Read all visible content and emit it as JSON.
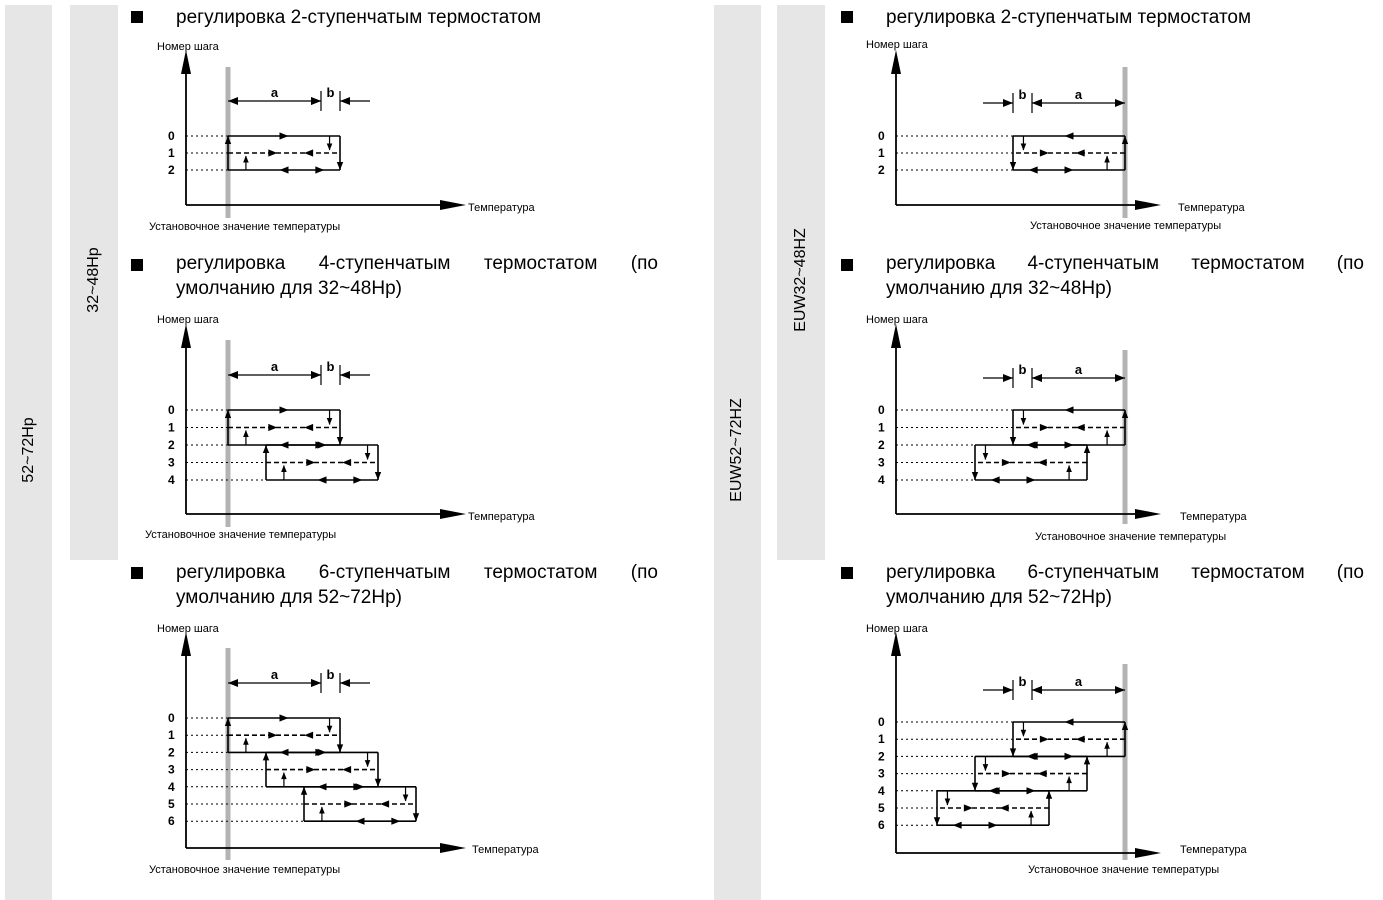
{
  "left_column": {
    "outer_label": "52~72Hp",
    "inner_label": "32~48Hp"
  },
  "right_column": {
    "outer_label": "EUW52~72HZ",
    "inner_label": "EUW32~48HZ"
  },
  "headings": {
    "h2": "регулировка 2-ступенчатым термостатом",
    "h4": "регулировка 4-ступенчатым термостатом (по умолчанию для 32~48Hp)",
    "h6": "регулировка 6-ступенчатым термостатом (по умолчанию для 52~72Hp)"
  },
  "diagram_labels": {
    "y_axis": "Номер шага",
    "x_axis": "Температура",
    "setpoint": "Установочное значение температуры",
    "a": "a",
    "b": "b"
  },
  "step_sets": {
    "two": [
      "0",
      "1",
      "2"
    ],
    "four": [
      "0",
      "1",
      "2",
      "3",
      "4"
    ],
    "six": [
      "0",
      "1",
      "2",
      "3",
      "4",
      "5",
      "6"
    ]
  },
  "colors": {
    "band": "#e6e6e6",
    "setpoint_line": "#b3b3b3",
    "ink": "#000000"
  }
}
